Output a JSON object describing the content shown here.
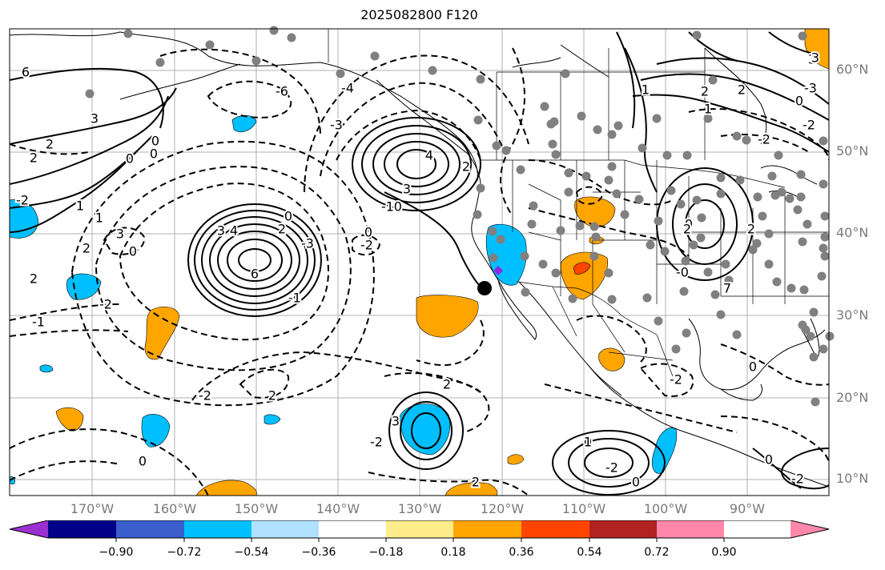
{
  "title": "2025082800 F120",
  "lat_labels": [
    "60°N",
    "50°N",
    "40°N",
    "30°N",
    "20°N",
    "10°N"
  ],
  "lon_labels": [
    "170°W",
    "160°W",
    "150°W",
    "140°W",
    "130°W",
    "120°W",
    "110°W",
    "100°W",
    "90°W"
  ],
  "colorbar": {
    "colors": [
      "#9b30d0",
      "#000088",
      "#3a5fcd",
      "#00bfff",
      "#b0e2ff",
      "#ffffff",
      "#ffec8b",
      "#ffa500",
      "#ff4500",
      "#b22222",
      "#ff88aa"
    ],
    "ticks": [
      "−0.90",
      "−0.72",
      "−0.54",
      "−0.36",
      "−0.18",
      "0.18",
      "0.36",
      "0.54",
      "0.72",
      "0.90"
    ]
  },
  "contour_labels": [
    "6",
    "3",
    "2",
    "2",
    "1",
    "0",
    "0",
    "-2",
    "1",
    "2",
    "3",
    "2",
    "-2",
    "-1",
    "6",
    "4",
    "3",
    "0",
    "2",
    "-6",
    "-4",
    "-3",
    "-2",
    "-3",
    "4",
    "3",
    "-0",
    "2",
    "-1",
    "2",
    "1",
    "0",
    "2",
    "3",
    "-2",
    "2",
    "-2",
    "0",
    "0",
    "-2",
    "0",
    "-0",
    "7",
    "0",
    "2",
    "1",
    "0",
    "-2",
    "-3",
    "3",
    "2",
    "2",
    "1",
    "0",
    "-2",
    "-1",
    "0",
    "0",
    "0",
    "-2",
    "2",
    "1",
    "-2",
    "3"
  ],
  "marker": "black-dot",
  "station_symbol": "gray-dots"
}
